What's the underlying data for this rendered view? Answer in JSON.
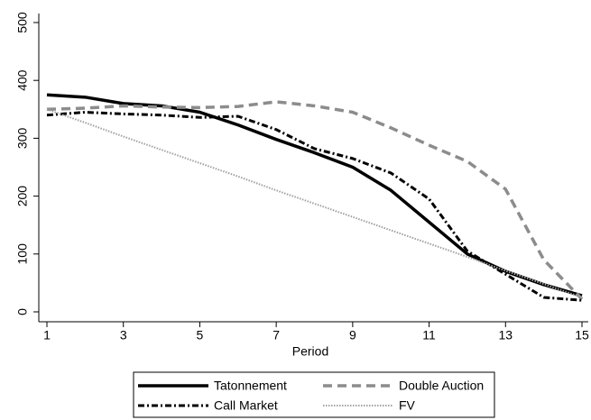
{
  "chart_data": {
    "type": "line",
    "x_label": "Period",
    "x": [
      1,
      2,
      3,
      4,
      5,
      6,
      7,
      8,
      9,
      10,
      11,
      12,
      13,
      14,
      15
    ],
    "xlim": [
      1,
      15
    ],
    "xticks": [
      1,
      3,
      5,
      7,
      9,
      11,
      13,
      15
    ],
    "ylim": [
      0,
      500
    ],
    "yticks": [
      0,
      100,
      200,
      300,
      400,
      500
    ],
    "grid": false,
    "legend": "bottom",
    "series": [
      {
        "name": "Tatonnement",
        "color": "#000000",
        "dash": "solid",
        "width": 3.5,
        "values": [
          375,
          371,
          360,
          356,
          345,
          323,
          298,
          275,
          250,
          210,
          155,
          100,
          70,
          47,
          28
        ]
      },
      {
        "name": "Double Auction",
        "color": "#8c8c8c",
        "dash": "dashed",
        "width": 3.5,
        "values": [
          350,
          352,
          356,
          354,
          353,
          355,
          363,
          356,
          345,
          318,
          288,
          260,
          212,
          90,
          22
        ]
      },
      {
        "name": "Call Market",
        "color": "#000000",
        "dash": "dashdot",
        "width": 3,
        "values": [
          340,
          345,
          342,
          340,
          336,
          338,
          315,
          282,
          265,
          240,
          195,
          105,
          65,
          25,
          20
        ]
      },
      {
        "name": "FV",
        "color": "#a0a0a0",
        "dash": "dotted",
        "width": 2,
        "values": [
          350,
          327,
          303,
          280,
          257,
          234,
          210,
          187,
          164,
          141,
          118,
          95,
          71,
          48,
          25
        ]
      }
    ]
  }
}
